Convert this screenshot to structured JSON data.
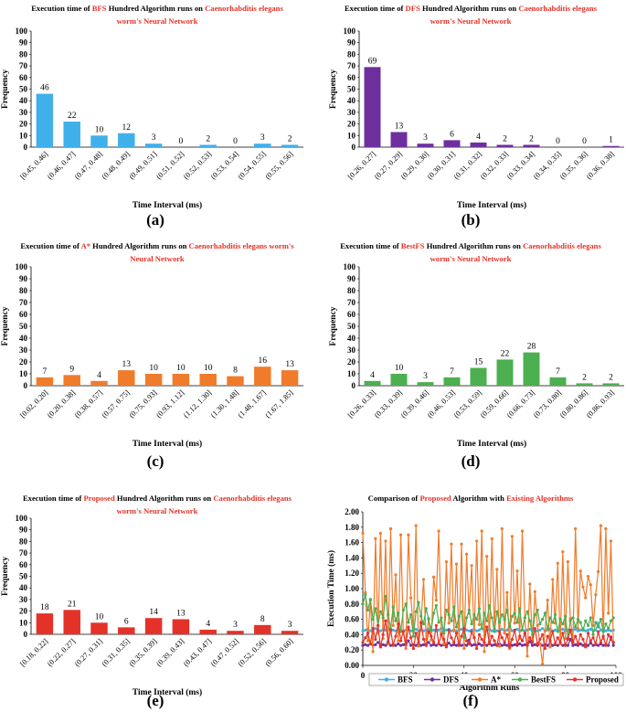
{
  "chart_data": [
    {
      "id": "a",
      "type": "bar",
      "panel_label": "(a)",
      "title": {
        "pre": "Execution time of ",
        "hl": "BFS",
        "mid": " Hundred Algorithm runs on ",
        "hl2": "Caenorhabditis elegans",
        "line2_black": "",
        "line2_red": "worm's Neural Network"
      },
      "xlabel": "Time Interval (ms)",
      "ylabel": "Frequency",
      "ylim": [
        0,
        100
      ],
      "yticks": [
        0,
        10,
        20,
        30,
        40,
        50,
        60,
        70,
        80,
        90,
        100
      ],
      "color": "#40b0ea",
      "categories": [
        "[0.45, 0.46]",
        "(0.46, 0.47]",
        "(0.47, 0.48]",
        "(0.48, 0.49]",
        "(0.49, 0.51]",
        "(0.51, 0.52]",
        "(0.52, 0.53]",
        "(0.53, 0.54]",
        "(0.54, 0.55]",
        "(0.55, 0.56]"
      ],
      "values": [
        46,
        22,
        10,
        12,
        3,
        0,
        2,
        0,
        3,
        2
      ]
    },
    {
      "id": "b",
      "type": "bar",
      "panel_label": "(b)",
      "title": {
        "pre": "Execution time of ",
        "hl": "DFS",
        "mid": " Hundred Algorithm runs on ",
        "hl2": "Caenorhabditis elegans",
        "line2_black": "",
        "line2_red": "worm's Neural Network"
      },
      "xlabel": "Time Interval (ms)",
      "ylabel": "Frequency",
      "ylim": [
        0,
        100
      ],
      "yticks": [
        0,
        10,
        20,
        30,
        40,
        50,
        60,
        70,
        80,
        90,
        100
      ],
      "color": "#6e2f9e",
      "categories": [
        "[0.26, 0.27]",
        "(0.27, 0.29]",
        "(0.29, 0.30]",
        "(0.30, 0.31]",
        "(0.31, 0.32]",
        "(0.32, 0.33]",
        "(0.33, 0.34]",
        "(0.34, 0.35]",
        "(0.35, 0.36]",
        "(0.36, 0.38]"
      ],
      "values": [
        69,
        13,
        3,
        6,
        4,
        2,
        2,
        0,
        0,
        1
      ]
    },
    {
      "id": "c",
      "type": "bar",
      "panel_label": "(c)",
      "title": {
        "pre": "Execution time of ",
        "hl": "A*",
        "mid": " Hundred Algorithm runs on ",
        "hl2": "Caenorhabditis elegans worm's",
        "line2_black": "",
        "line2_red": "Neural Network"
      },
      "xlabel": "Time Interval (ms)",
      "ylabel": "Frequency",
      "ylim": [
        0,
        100
      ],
      "yticks": [
        0,
        10,
        20,
        30,
        40,
        50,
        60,
        70,
        80,
        90,
        100
      ],
      "color": "#f07b2a",
      "categories": [
        "[0.02, 0.20]",
        "(0.20, 0.38]",
        "(0.38, 0.57]",
        "(0.57, 0.75]",
        "(0.75, 0.93]",
        "(0.93, 1.12]",
        "(1.12, 1.30]",
        "(1.30, 1.48]",
        "(1.48, 1.67]",
        "(1.67, 1.85]"
      ],
      "values": [
        7,
        9,
        4,
        13,
        10,
        10,
        10,
        8,
        16,
        13
      ]
    },
    {
      "id": "d",
      "type": "bar",
      "panel_label": "(d)",
      "title": {
        "pre": "Execution time of ",
        "hl": "BestFS",
        "mid": " Hundred Algorithm runs on ",
        "hl2": "Caenorhabditis elegans",
        "line2_black": "",
        "line2_red": "worm's Neural Network"
      },
      "xlabel": "Time Interval (ms)",
      "ylabel": "Frequency",
      "ylim": [
        0,
        100
      ],
      "yticks": [
        0,
        10,
        20,
        30,
        40,
        50,
        60,
        70,
        80,
        90,
        100
      ],
      "color": "#4caf50",
      "categories": [
        "[0.26, 0.33]",
        "(0.33, 0.39]",
        "(0.39, 0.46]",
        "(0.46, 0.53]",
        "(0.53, 0.59]",
        "(0.59, 0.66]",
        "(0.66, 0.73]",
        "(0.73, 0.80]",
        "(0.80, 0.86]",
        "(0.86, 0.93]"
      ],
      "values": [
        4,
        10,
        3,
        7,
        15,
        22,
        28,
        7,
        2,
        2
      ]
    },
    {
      "id": "e",
      "type": "bar",
      "panel_label": "(e)",
      "title": {
        "pre": "Execution time of ",
        "hl": "Proposed",
        "mid": " Hundred Algorithm runs on ",
        "hl2": "Caenorhabditis elegans",
        "line2_black": "",
        "line2_red": "worm's Neural Network"
      },
      "xlabel": "Time Interval (ms)",
      "ylabel": "Frequency",
      "ylim": [
        0,
        100
      ],
      "yticks": [
        0,
        10,
        20,
        30,
        40,
        50,
        60,
        70,
        80,
        90,
        100
      ],
      "color": "#e53228",
      "categories": [
        "[0.18, 0.22]",
        "(0.22, 0.27]",
        "(0.27, 0.31]",
        "(0.31, 0.35]",
        "(0.35, 0.39]",
        "(0.39, 0.43]",
        "(0.43, 0.47]",
        "(0.47, 0.52]",
        "(0.52, 0.56]",
        "(0.56, 0.60]"
      ],
      "values": [
        18,
        21,
        10,
        6,
        14,
        13,
        4,
        3,
        8,
        3
      ]
    },
    {
      "id": "f",
      "type": "line",
      "panel_label": "(f)",
      "title": {
        "pre": "Comparison of ",
        "hl": "Proposed",
        "mid": " Algorithm with ",
        "hl2": "Existing Algorithms"
      },
      "xlabel": "Algorithm Runs",
      "ylabel": "Execution Time (ms)",
      "xlim": [
        0,
        100
      ],
      "xticks": [
        0,
        20,
        40,
        60,
        80,
        100
      ],
      "ylim": [
        0,
        2.0
      ],
      "yticks": [
        "0.00",
        "0.20",
        "0.40",
        "0.60",
        "0.80",
        "1.00",
        "1.20",
        "1.40",
        "1.60",
        "1.80",
        "2.00"
      ],
      "legend_position": "bottom",
      "series": [
        {
          "name": "BFS",
          "color": "#40b0ea",
          "values": [
            0.45,
            0.46,
            0.47,
            0.45,
            0.46,
            0.48,
            0.46,
            0.45,
            0.47,
            0.46,
            0.49,
            0.45,
            0.46,
            0.45,
            0.47,
            0.46,
            0.45,
            0.46,
            0.48,
            0.45,
            0.46,
            0.47,
            0.45,
            0.46,
            0.45,
            0.46,
            0.47,
            0.45,
            0.46,
            0.45,
            0.46,
            0.48,
            0.45,
            0.46,
            0.47,
            0.45,
            0.46,
            0.45,
            0.46,
            0.47,
            0.45,
            0.46,
            0.45,
            0.46,
            0.47,
            0.45,
            0.46,
            0.48,
            0.45,
            0.46,
            0.47,
            0.45,
            0.46,
            0.45,
            0.46,
            0.47,
            0.45,
            0.46,
            0.52,
            0.45,
            0.46,
            0.47,
            0.45,
            0.46,
            0.45,
            0.46,
            0.47,
            0.45,
            0.46,
            0.45,
            0.46,
            0.48,
            0.45,
            0.46,
            0.47,
            0.45,
            0.46,
            0.45,
            0.46,
            0.47,
            0.45,
            0.46,
            0.45,
            0.46,
            0.47,
            0.45,
            0.46,
            0.48,
            0.45,
            0.46,
            0.47,
            0.45,
            0.46,
            0.55,
            0.46,
            0.47,
            0.45,
            0.46,
            0.45,
            0.46
          ]
        },
        {
          "name": "DFS",
          "color": "#6e2f9e",
          "values": [
            0.26,
            0.27,
            0.26,
            0.28,
            0.26,
            0.27,
            0.3,
            0.26,
            0.27,
            0.26,
            0.31,
            0.26,
            0.27,
            0.26,
            0.28,
            0.26,
            0.27,
            0.26,
            0.32,
            0.26,
            0.27,
            0.26,
            0.28,
            0.26,
            0.27,
            0.26,
            0.3,
            0.26,
            0.27,
            0.26,
            0.28,
            0.26,
            0.27,
            0.26,
            0.29,
            0.26,
            0.27,
            0.26,
            0.28,
            0.26,
            0.27,
            0.26,
            0.33,
            0.26,
            0.27,
            0.26,
            0.28,
            0.26,
            0.27,
            0.26,
            0.3,
            0.26,
            0.27,
            0.26,
            0.28,
            0.26,
            0.27,
            0.26,
            0.29,
            0.26,
            0.27,
            0.26,
            0.28,
            0.26,
            0.27,
            0.26,
            0.31,
            0.26,
            0.27,
            0.26,
            0.28,
            0.26,
            0.27,
            0.26,
            0.29,
            0.26,
            0.27,
            0.26,
            0.28,
            0.26,
            0.27,
            0.26,
            0.34,
            0.26,
            0.27,
            0.26,
            0.28,
            0.26,
            0.27,
            0.26,
            0.29,
            0.26,
            0.27,
            0.26,
            0.28,
            0.26,
            0.27,
            0.26,
            0.37,
            0.26
          ]
        },
        {
          "name": "A*",
          "color": "#f07b2a",
          "values": [
            1.72,
            0.95,
            0.32,
            0.85,
            0.18,
            1.65,
            0.42,
            1.72,
            0.35,
            1.62,
            0.28,
            1.78,
            0.52,
            1.18,
            0.32,
            1.7,
            0.45,
            0.22,
            1.7,
            0.88,
            0.45,
            1.82,
            0.25,
            0.55,
            1.12,
            0.34,
            0.61,
            0.33,
            1.15,
            0.85,
            1.75,
            0.43,
            0.28,
            1.35,
            0.55,
            1.58,
            0.45,
            1.32,
            0.3,
            1.58,
            0.22,
            1.45,
            0.68,
            1.3,
            0.36,
            1.62,
            0.53,
            1.75,
            0.18,
            1.42,
            0.31,
            1.65,
            0.48,
            1.25,
            0.25,
            1.78,
            0.42,
            0.95,
            0.22,
            1.68,
            0.55,
            1.23,
            0.35,
            1.75,
            0.62,
            0.12,
            1.06,
            0.32,
            0.96,
            0.52,
            0.28,
            0.02,
            0.45,
            0.85,
            0.24,
            1.12,
            0.55,
            1.33,
            0.28,
            1.48,
            0.35,
            1.35,
            0.61,
            0.32,
            1.78,
            0.48,
            1.23,
            1.02,
            0.88,
            1.16,
            1.05,
            0.52,
            0.92,
            1.22,
            1.82,
            0.35,
            1.78,
            0.68,
            1.62,
            0.3
          ]
        },
        {
          "name": "BestFS",
          "color": "#4caf50",
          "values": [
            0.8,
            0.92,
            0.72,
            0.86,
            0.6,
            0.74,
            0.52,
            0.7,
            0.62,
            0.9,
            0.66,
            0.48,
            0.76,
            0.58,
            0.68,
            0.44,
            0.72,
            0.8,
            0.56,
            0.66,
            0.38,
            0.7,
            0.82,
            0.64,
            0.54,
            0.74,
            0.6,
            0.46,
            0.68,
            0.78,
            0.56,
            0.62,
            0.42,
            0.72,
            0.66,
            0.58,
            0.76,
            0.5,
            0.64,
            0.7,
            0.36,
            0.62,
            0.72,
            0.54,
            0.66,
            0.6,
            0.74,
            0.48,
            0.68,
            0.58,
            0.78,
            0.62,
            0.44,
            0.7,
            0.56,
            0.66,
            0.6,
            0.72,
            0.5,
            0.64,
            0.68,
            0.56,
            0.74,
            0.46,
            0.62,
            0.7,
            0.58,
            0.4,
            0.66,
            0.72,
            0.54,
            0.6,
            0.68,
            0.48,
            0.62,
            0.56,
            0.66,
            0.44,
            0.6,
            0.54,
            0.64,
            0.36,
            0.58,
            0.62,
            0.5,
            0.6,
            0.56,
            0.46,
            0.58,
            0.52,
            0.62,
            0.4,
            0.56,
            0.5,
            0.6,
            0.44,
            0.54,
            0.48,
            0.58,
            0.62
          ]
        },
        {
          "name": "Proposed",
          "color": "#e53228",
          "values": [
            0.3,
            0.36,
            0.42,
            0.28,
            0.48,
            0.34,
            0.52,
            0.24,
            0.4,
            0.58,
            0.3,
            0.46,
            0.26,
            0.38,
            0.54,
            0.32,
            0.44,
            0.28,
            0.5,
            0.36,
            0.22,
            0.42,
            0.3,
            0.56,
            0.34,
            0.26,
            0.44,
            0.38,
            0.3,
            0.52,
            0.28,
            0.4,
            0.34,
            0.24,
            0.46,
            0.36,
            0.3,
            0.42,
            0.26,
            0.38,
            0.48,
            0.32,
            0.28,
            0.44,
            0.36,
            0.22,
            0.4,
            0.34,
            0.3,
            0.5,
            0.28,
            0.38,
            0.32,
            0.26,
            0.44,
            0.36,
            0.3,
            0.4,
            0.24,
            0.34,
            0.46,
            0.28,
            0.38,
            0.32,
            0.42,
            0.26,
            0.36,
            0.3,
            0.48,
            0.28,
            0.34,
            0.4,
            0.22,
            0.38,
            0.32,
            0.44,
            0.28,
            0.36,
            0.3,
            0.42,
            0.26,
            0.34,
            0.46,
            0.3,
            0.38,
            0.28,
            0.4,
            0.34,
            0.24,
            0.42,
            0.32,
            0.36,
            0.28,
            0.44,
            0.3,
            0.38,
            0.26,
            0.4,
            0.34,
            0.3
          ]
        }
      ]
    }
  ]
}
